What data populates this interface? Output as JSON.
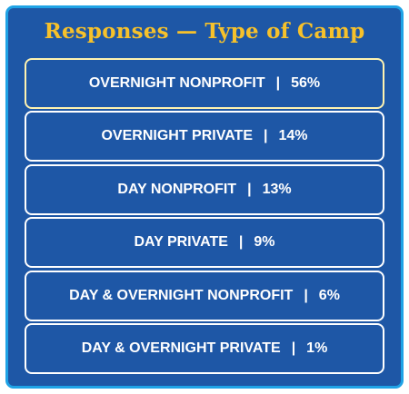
{
  "title": "Responses — Type of Camp",
  "colors": {
    "background": "#1e57a6",
    "outer_border": "#1fa3e6",
    "title": "#f6c12b",
    "row_border": "#ffffff",
    "highlight_border": "#fff3b0",
    "text": "#ffffff"
  },
  "chart_data": {
    "type": "table",
    "title": "Responses — Type of Camp",
    "separator": "|",
    "rows": [
      {
        "label": "OVERNIGHT NONPROFIT",
        "value": "56%",
        "percent": 56,
        "highlight": true
      },
      {
        "label": "OVERNIGHT PRIVATE",
        "value": "14%",
        "percent": 14,
        "highlight": false
      },
      {
        "label": "DAY NONPROFIT",
        "value": "13%",
        "percent": 13,
        "highlight": false
      },
      {
        "label": "DAY PRIVATE",
        "value": "9%",
        "percent": 9,
        "highlight": false
      },
      {
        "label": "DAY & OVERNIGHT NONPROFIT",
        "value": "6%",
        "percent": 6,
        "highlight": false
      },
      {
        "label": "DAY & OVERNIGHT PRIVATE",
        "value": "1%",
        "percent": 1,
        "highlight": false
      }
    ]
  }
}
